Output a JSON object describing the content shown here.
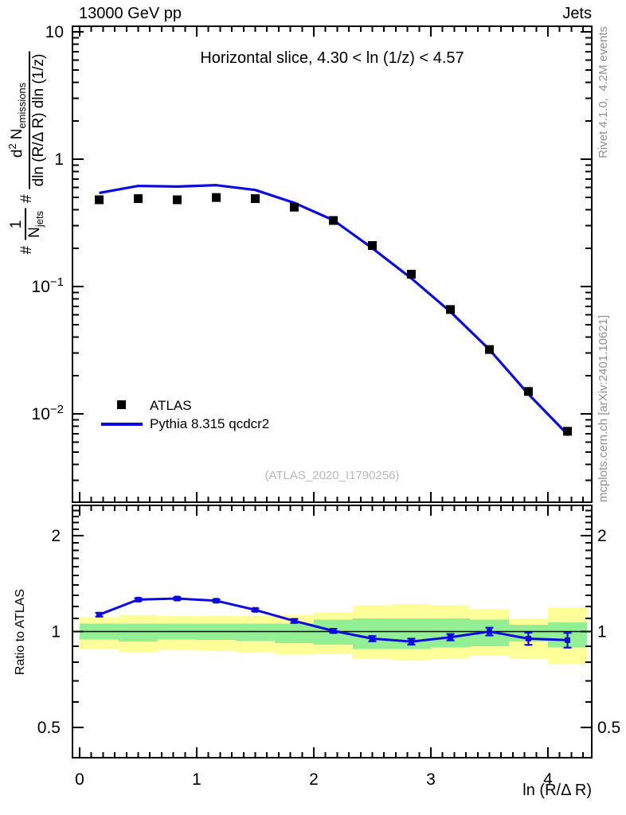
{
  "header": {
    "left": "13000 GeV pp",
    "right": "Jets"
  },
  "title": "Horizontal slice, 4.30 < ln (1/z) < 4.57",
  "xlabel": "ln (R/Δ R)",
  "ratio_axis_label": "Ratio to ATLAS",
  "watermark": "(ATLAS_2020_I1790256)",
  "side_notes": {
    "top_right": "Rivet 4.1.0,  4.2M events",
    "bottom_right": "mcplots.cern.ch [arXiv:2401.10621]"
  },
  "ylabel_parts": {
    "hash1": "#",
    "one": "1",
    "N": "N",
    "jets": "jets",
    "hash2": "#",
    "d": "d",
    "two": "2",
    "N2": "N",
    "emissions": "emissions",
    "den2": "dln (R/Δ R) dln (1/z)"
  },
  "legend": [
    {
      "label": "ATLAS",
      "marker": "black-square",
      "color": "#000000"
    },
    {
      "label": "Pythia 8.315 qcdcr2",
      "marker": "line",
      "color": "#0b0bdf"
    }
  ],
  "chart_data": {
    "type": "line",
    "title": "Horizontal slice, 4.30 < ln (1/z) < 4.57",
    "xlabel": "ln (R/Δ R)",
    "ylabel": "# 1/N_jets # d^2 N_emissions / dln (R/Δ R) dln (1/z)",
    "x": [
      0.167,
      0.5,
      0.833,
      1.167,
      1.5,
      1.833,
      2.167,
      2.5,
      2.833,
      3.167,
      3.5,
      3.833,
      4.167
    ],
    "series": [
      {
        "name": "ATLAS",
        "type": "scatter",
        "marker": "square",
        "color": "#000000",
        "values": [
          0.48,
          0.49,
          0.48,
          0.5,
          0.49,
          0.42,
          0.33,
          0.21,
          0.125,
          0.066,
          0.032,
          0.015,
          0.0073
        ],
        "y_errors_rel": [
          0,
          0,
          0,
          0,
          0,
          0,
          0,
          0,
          0,
          0,
          0,
          0.04,
          0.08
        ]
      },
      {
        "name": "Pythia 8.315 qcdcr2",
        "type": "line",
        "color": "#0b0bdf",
        "values": [
          0.543,
          0.617,
          0.61,
          0.625,
          0.573,
          0.454,
          0.332,
          0.2,
          0.116,
          0.0634,
          0.032,
          0.0143,
          0.0069
        ]
      }
    ],
    "ratio": {
      "name": "Ratio to ATLAS",
      "values": [
        1.13,
        1.26,
        1.27,
        1.25,
        1.17,
        1.08,
        1.005,
        0.95,
        0.93,
        0.96,
        1.0,
        0.95,
        0.94
      ],
      "errors": [
        0.015,
        0.012,
        0.012,
        0.012,
        0.012,
        0.015,
        0.015,
        0.018,
        0.02,
        0.022,
        0.028,
        0.042,
        0.05
      ]
    },
    "bands": [
      {
        "x": [
          0.0,
          0.333
        ],
        "outer": [
          0.88,
          1.11
        ],
        "inner": [
          0.945,
          1.06
        ]
      },
      {
        "x": [
          0.333,
          0.667
        ],
        "outer": [
          0.86,
          1.13
        ],
        "inner": [
          0.93,
          1.06
        ]
      },
      {
        "x": [
          0.667,
          1.0
        ],
        "outer": [
          0.875,
          1.12
        ],
        "inner": [
          0.945,
          1.06
        ]
      },
      {
        "x": [
          1.0,
          1.333
        ],
        "outer": [
          0.87,
          1.12
        ],
        "inner": [
          0.94,
          1.06
        ]
      },
      {
        "x": [
          1.333,
          1.667
        ],
        "outer": [
          0.86,
          1.12
        ],
        "inner": [
          0.935,
          1.06
        ]
      },
      {
        "x": [
          1.667,
          2.0
        ],
        "outer": [
          0.845,
          1.13
        ],
        "inner": [
          0.92,
          1.06
        ]
      },
      {
        "x": [
          2.0,
          2.333
        ],
        "outer": [
          0.85,
          1.15
        ],
        "inner": [
          0.91,
          1.09
        ]
      },
      {
        "x": [
          2.333,
          2.667
        ],
        "outer": [
          0.82,
          1.21
        ],
        "inner": [
          0.88,
          1.1
        ]
      },
      {
        "x": [
          2.667,
          3.0
        ],
        "outer": [
          0.81,
          1.22
        ],
        "inner": [
          0.88,
          1.1
        ]
      },
      {
        "x": [
          3.0,
          3.333
        ],
        "outer": [
          0.82,
          1.21
        ],
        "inner": [
          0.89,
          1.1
        ]
      },
      {
        "x": [
          3.333,
          3.667
        ],
        "outer": [
          0.84,
          1.18
        ],
        "inner": [
          0.9,
          1.09
        ]
      },
      {
        "x": [
          3.667,
          4.0
        ],
        "outer": [
          0.82,
          1.1
        ],
        "inner": [
          0.93,
          1.05
        ]
      },
      {
        "x": [
          4.0,
          4.333
        ],
        "outer": [
          0.79,
          1.19
        ],
        "inner": [
          0.89,
          1.07
        ]
      }
    ],
    "band_colors": {
      "outer": "#ffff99",
      "inner": "#93ef93"
    },
    "axes": {
      "x_range": [
        -0.061,
        4.374
      ],
      "main_y_range": [
        0.00202,
        11.1
      ],
      "main_y_scale": "log",
      "ratio_y_range": [
        0.4,
        2.5
      ],
      "ratio_y_scale": "log",
      "x_major_ticks": [
        {
          "v": 0,
          "label": "0"
        },
        {
          "v": 1,
          "label": "1"
        },
        {
          "v": 2,
          "label": "2"
        },
        {
          "v": 3,
          "label": "3"
        },
        {
          "v": 4,
          "label": "4"
        }
      ],
      "x_minor_step": 0.1,
      "main_y_ticks": [
        {
          "v": 10,
          "label": "10",
          "exp": ""
        },
        {
          "v": 1,
          "label": "1",
          "exp": ""
        },
        {
          "v": 0.1,
          "label": "10",
          "exp": "−1"
        },
        {
          "v": 0.01,
          "label": "10",
          "exp": "−2"
        }
      ],
      "ratio_y_ticks": [
        {
          "v": 2,
          "label": "2"
        },
        {
          "v": 1,
          "label": "1"
        },
        {
          "v": 0.5,
          "label": "0.5"
        }
      ]
    }
  }
}
